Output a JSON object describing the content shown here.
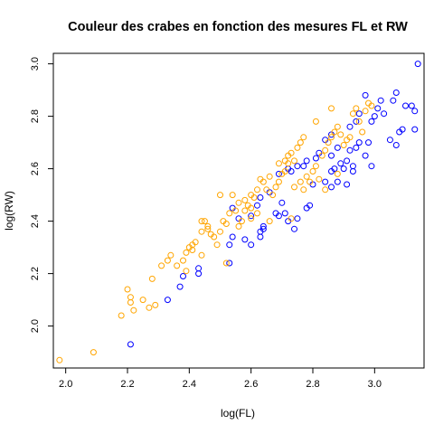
{
  "chart_data": {
    "type": "scatter",
    "title": "Couleur des crabes en fonction des mesures FL et RW",
    "xlabel": "log(FL)",
    "ylabel": "log(RW)",
    "xlim": [
      1.96,
      3.16
    ],
    "ylim": [
      1.84,
      3.04
    ],
    "x_ticks": [
      "2.0",
      "2.2",
      "2.4",
      "2.6",
      "2.8",
      "3.0"
    ],
    "y_ticks": [
      "2.0",
      "2.2",
      "2.4",
      "2.6",
      "2.8",
      "3.0"
    ],
    "grid": false,
    "legend": "none",
    "series": [
      {
        "color": "#0000ff",
        "points": [
          [
            2.21,
            1.93
          ],
          [
            2.33,
            2.1
          ],
          [
            2.37,
            2.15
          ],
          [
            2.38,
            2.19
          ],
          [
            2.43,
            2.2
          ],
          [
            2.43,
            2.22
          ],
          [
            2.53,
            2.24
          ],
          [
            2.53,
            2.31
          ],
          [
            2.54,
            2.34
          ],
          [
            2.58,
            2.33
          ],
          [
            2.6,
            2.31
          ],
          [
            2.63,
            2.34
          ],
          [
            2.63,
            2.36
          ],
          [
            2.64,
            2.37
          ],
          [
            2.56,
            2.41
          ],
          [
            2.6,
            2.42
          ],
          [
            2.62,
            2.46
          ],
          [
            2.63,
            2.49
          ],
          [
            2.66,
            2.51
          ],
          [
            2.54,
            2.45
          ],
          [
            2.68,
            2.43
          ],
          [
            2.7,
            2.47
          ],
          [
            2.69,
            2.58
          ],
          [
            2.72,
            2.6
          ],
          [
            2.73,
            2.59
          ],
          [
            2.75,
            2.61
          ],
          [
            2.77,
            2.61
          ],
          [
            2.78,
            2.63
          ],
          [
            2.81,
            2.64
          ],
          [
            2.82,
            2.66
          ],
          [
            2.75,
            2.41
          ],
          [
            2.78,
            2.45
          ],
          [
            2.79,
            2.46
          ],
          [
            2.84,
            2.55
          ],
          [
            2.86,
            2.53
          ],
          [
            2.86,
            2.59
          ],
          [
            2.87,
            2.6
          ],
          [
            2.86,
            2.65
          ],
          [
            2.88,
            2.68
          ],
          [
            2.9,
            2.6
          ],
          [
            2.91,
            2.54
          ],
          [
            2.93,
            2.59
          ],
          [
            2.93,
            2.61
          ],
          [
            2.92,
            2.67
          ],
          [
            2.94,
            2.68
          ],
          [
            2.95,
            2.7
          ],
          [
            2.97,
            2.65
          ],
          [
            2.98,
            2.7
          ],
          [
            2.99,
            2.61
          ],
          [
            2.99,
            2.78
          ],
          [
            3.0,
            2.8
          ],
          [
            3.01,
            2.83
          ],
          [
            3.03,
            2.81
          ],
          [
            3.02,
            2.86
          ],
          [
            3.06,
            2.86
          ],
          [
            3.07,
            2.89
          ],
          [
            3.05,
            2.71
          ],
          [
            3.07,
            2.69
          ],
          [
            3.08,
            2.74
          ],
          [
            3.09,
            2.75
          ],
          [
            3.1,
            2.84
          ],
          [
            3.12,
            2.84
          ],
          [
            3.13,
            2.82
          ],
          [
            3.14,
            3.0
          ],
          [
            3.13,
            2.75
          ],
          [
            2.97,
            2.88
          ],
          [
            2.92,
            2.76
          ],
          [
            2.94,
            2.78
          ],
          [
            2.95,
            2.81
          ],
          [
            2.84,
            2.71
          ],
          [
            2.86,
            2.73
          ],
          [
            2.88,
            2.55
          ],
          [
            2.89,
            2.62
          ],
          [
            2.91,
            2.63
          ],
          [
            2.8,
            2.54
          ],
          [
            2.71,
            2.43
          ],
          [
            2.72,
            2.4
          ],
          [
            2.69,
            2.42
          ],
          [
            2.74,
            2.37
          ],
          [
            2.64,
            2.38
          ]
        ]
      },
      {
        "color": "#ffa500",
        "points": [
          [
            1.98,
            1.87
          ],
          [
            2.09,
            1.9
          ],
          [
            2.18,
            2.04
          ],
          [
            2.2,
            2.14
          ],
          [
            2.21,
            2.09
          ],
          [
            2.21,
            2.11
          ],
          [
            2.22,
            2.06
          ],
          [
            2.25,
            2.1
          ],
          [
            2.27,
            2.07
          ],
          [
            2.28,
            2.18
          ],
          [
            2.29,
            2.08
          ],
          [
            2.31,
            2.23
          ],
          [
            2.33,
            2.25
          ],
          [
            2.34,
            2.27
          ],
          [
            2.36,
            2.23
          ],
          [
            2.38,
            2.25
          ],
          [
            2.39,
            2.28
          ],
          [
            2.4,
            2.3
          ],
          [
            2.41,
            2.29
          ],
          [
            2.41,
            2.31
          ],
          [
            2.44,
            2.36
          ],
          [
            2.44,
            2.4
          ],
          [
            2.45,
            2.4
          ],
          [
            2.46,
            2.37
          ],
          [
            2.47,
            2.35
          ],
          [
            2.48,
            2.34
          ],
          [
            2.49,
            2.31
          ],
          [
            2.5,
            2.36
          ],
          [
            2.51,
            2.4
          ],
          [
            2.52,
            2.39
          ],
          [
            2.53,
            2.43
          ],
          [
            2.55,
            2.44
          ],
          [
            2.56,
            2.38
          ],
          [
            2.57,
            2.4
          ],
          [
            2.58,
            2.48
          ],
          [
            2.59,
            2.46
          ],
          [
            2.6,
            2.45
          ],
          [
            2.61,
            2.49
          ],
          [
            2.62,
            2.52
          ],
          [
            2.63,
            2.56
          ],
          [
            2.64,
            2.55
          ],
          [
            2.65,
            2.52
          ],
          [
            2.66,
            2.57
          ],
          [
            2.67,
            2.5
          ],
          [
            2.68,
            2.53
          ],
          [
            2.69,
            2.55
          ],
          [
            2.7,
            2.58
          ],
          [
            2.71,
            2.59
          ],
          [
            2.72,
            2.62
          ],
          [
            2.73,
            2.66
          ],
          [
            2.74,
            2.63
          ],
          [
            2.75,
            2.68
          ],
          [
            2.76,
            2.7
          ],
          [
            2.77,
            2.72
          ],
          [
            2.78,
            2.57
          ],
          [
            2.79,
            2.55
          ],
          [
            2.8,
            2.59
          ],
          [
            2.81,
            2.61
          ],
          [
            2.82,
            2.56
          ],
          [
            2.83,
            2.65
          ],
          [
            2.84,
            2.67
          ],
          [
            2.85,
            2.7
          ],
          [
            2.86,
            2.72
          ],
          [
            2.87,
            2.74
          ],
          [
            2.88,
            2.76
          ],
          [
            2.89,
            2.73
          ],
          [
            2.9,
            2.69
          ],
          [
            2.91,
            2.71
          ],
          [
            2.92,
            2.72
          ],
          [
            2.93,
            2.81
          ],
          [
            2.94,
            2.83
          ],
          [
            2.95,
            2.78
          ],
          [
            2.96,
            2.74
          ],
          [
            2.97,
            2.82
          ],
          [
            2.98,
            2.85
          ],
          [
            2.99,
            2.84
          ],
          [
            2.5,
            2.5
          ],
          [
            2.54,
            2.5
          ],
          [
            2.58,
            2.44
          ],
          [
            2.6,
            2.41
          ],
          [
            2.62,
            2.43
          ],
          [
            2.66,
            2.4
          ],
          [
            2.71,
            2.63
          ],
          [
            2.74,
            2.53
          ],
          [
            2.76,
            2.55
          ],
          [
            2.81,
            2.78
          ],
          [
            2.84,
            2.52
          ],
          [
            2.86,
            2.83
          ],
          [
            2.88,
            2.58
          ],
          [
            2.46,
            2.38
          ],
          [
            2.44,
            2.27
          ],
          [
            2.42,
            2.32
          ],
          [
            2.39,
            2.21
          ],
          [
            2.52,
            2.24
          ],
          [
            2.56,
            2.47
          ],
          [
            2.6,
            2.5
          ],
          [
            2.69,
            2.62
          ],
          [
            2.72,
            2.65
          ],
          [
            2.73,
            2.41
          ],
          [
            2.77,
            2.52
          ]
        ]
      }
    ]
  }
}
